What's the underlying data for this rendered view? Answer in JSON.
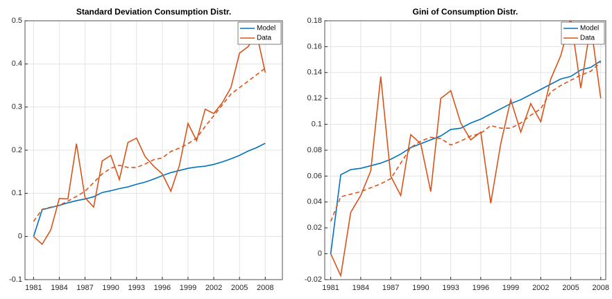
{
  "chart_data": [
    {
      "type": "line",
      "title": "Standard Deviation Consumption Distr.",
      "x": [
        1981,
        1982,
        1983,
        1984,
        1985,
        1986,
        1987,
        1988,
        1989,
        1990,
        1991,
        1992,
        1993,
        1994,
        1995,
        1996,
        1997,
        1998,
        1999,
        2000,
        2001,
        2002,
        2003,
        2004,
        2005,
        2006,
        2007,
        2008
      ],
      "series": [
        {
          "name": "Model",
          "color": "#0072bd",
          "values": [
            0,
            0.062,
            0.067,
            0.072,
            0.078,
            0.083,
            0.087,
            0.092,
            0.102,
            0.106,
            0.111,
            0.115,
            0.121,
            0.126,
            0.133,
            0.141,
            0.148,
            0.153,
            0.158,
            0.161,
            0.163,
            0.167,
            0.173,
            0.18,
            0.188,
            0.198,
            0.206,
            0.216
          ]
        },
        {
          "name": "Data",
          "color": "#d95319",
          "values": [
            0,
            -0.018,
            0.015,
            0.088,
            0.087,
            0.215,
            0.09,
            0.068,
            0.175,
            0.188,
            0.132,
            0.218,
            0.228,
            0.185,
            0.163,
            0.145,
            0.105,
            0.165,
            0.262,
            0.222,
            0.295,
            0.285,
            0.31,
            0.345,
            0.425,
            0.44,
            0.47,
            0.38
          ]
        },
        {
          "color": "#d95319",
          "dashed": true,
          "values": [
            0.035,
            0.063,
            0.068,
            0.072,
            0.082,
            0.093,
            0.105,
            0.125,
            0.145,
            0.158,
            0.165,
            0.16,
            0.16,
            0.168,
            0.178,
            0.182,
            0.197,
            0.205,
            0.215,
            0.228,
            0.255,
            0.28,
            0.305,
            0.33,
            0.345,
            0.36,
            0.375,
            0.39
          ]
        }
      ],
      "xlim": [
        1980,
        2010
      ],
      "xticks": [
        1981,
        1984,
        1987,
        1990,
        1993,
        1996,
        1999,
        2002,
        2005,
        2008
      ],
      "ylim": [
        -0.1,
        0.5
      ],
      "yticks": [
        -0.1,
        0,
        0.1,
        0.2,
        0.3,
        0.4,
        0.5
      ],
      "grid": true,
      "legend": "top-right"
    },
    {
      "type": "line",
      "title": "Gini of Consumption Distr.",
      "x": [
        1981,
        1982,
        1983,
        1984,
        1985,
        1986,
        1987,
        1988,
        1989,
        1990,
        1991,
        1992,
        1993,
        1994,
        1995,
        1996,
        1997,
        1998,
        1999,
        2000,
        2001,
        2002,
        2003,
        2004,
        2005,
        2006,
        2007,
        2008
      ],
      "series": [
        {
          "name": "Model",
          "color": "#0072bd",
          "values": [
            0,
            0.061,
            0.065,
            0.066,
            0.068,
            0.07,
            0.073,
            0.077,
            0.082,
            0.085,
            0.088,
            0.091,
            0.096,
            0.097,
            0.101,
            0.104,
            0.108,
            0.112,
            0.116,
            0.119,
            0.123,
            0.127,
            0.131,
            0.135,
            0.137,
            0.142,
            0.144,
            0.149
          ]
        },
        {
          "name": "Data",
          "color": "#d95319",
          "values": [
            0,
            -0.017,
            0.032,
            0.045,
            0.064,
            0.137,
            0.06,
            0.045,
            0.092,
            0.085,
            0.048,
            0.12,
            0.126,
            0.101,
            0.088,
            0.094,
            0.039,
            0.085,
            0.119,
            0.094,
            0.116,
            0.102,
            0.135,
            0.153,
            0.182,
            0.128,
            0.177,
            0.12
          ]
        },
        {
          "color": "#d95319",
          "dashed": true,
          "values": [
            0.025,
            0.044,
            0.046,
            0.048,
            0.051,
            0.054,
            0.058,
            0.07,
            0.082,
            0.087,
            0.09,
            0.089,
            0.084,
            0.087,
            0.091,
            0.093,
            0.099,
            0.097,
            0.097,
            0.101,
            0.107,
            0.112,
            0.125,
            0.13,
            0.134,
            0.138,
            0.141,
            0.148
          ]
        }
      ],
      "xlim": [
        1980.4,
        2008.5
      ],
      "xticks": [
        1981,
        1984,
        1987,
        1990,
        1993,
        1996,
        1999,
        2002,
        2005,
        2008
      ],
      "ylim": [
        -0.02,
        0.18
      ],
      "yticks": [
        -0.02,
        0,
        0.02,
        0.04,
        0.06,
        0.08,
        0.1,
        0.12,
        0.14,
        0.16,
        0.18
      ],
      "grid": true,
      "legend": "top-right"
    }
  ]
}
